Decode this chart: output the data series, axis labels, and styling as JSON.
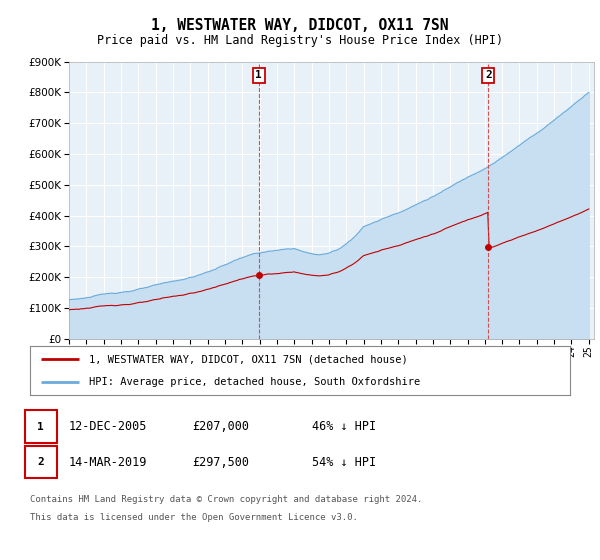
{
  "title": "1, WESTWATER WAY, DIDCOT, OX11 7SN",
  "subtitle": "Price paid vs. HM Land Registry's House Price Index (HPI)",
  "legend_line1": "1, WESTWATER WAY, DIDCOT, OX11 7SN (detached house)",
  "legend_line2": "HPI: Average price, detached house, South Oxfordshire",
  "transaction1_date": "12-DEC-2005",
  "transaction1_price": 207000,
  "transaction1_year": 2005.95,
  "transaction2_date": "14-MAR-2019",
  "transaction2_price": 297500,
  "transaction2_year": 2019.2,
  "footer_line1": "Contains HM Land Registry data © Crown copyright and database right 2024.",
  "footer_line2": "This data is licensed under the Open Government Licence v3.0.",
  "hpi_color": "#6aabdc",
  "hpi_fill_color": "#c8dff2",
  "price_color": "#c00000",
  "dashed_color": "#d04040",
  "bg_color": "#e8f0f8",
  "plot_bg": "#ffffff",
  "grid_color": "#cccccc",
  "ylim_max": 900000,
  "xlim_start": 1995.0,
  "xlim_end": 2025.3
}
